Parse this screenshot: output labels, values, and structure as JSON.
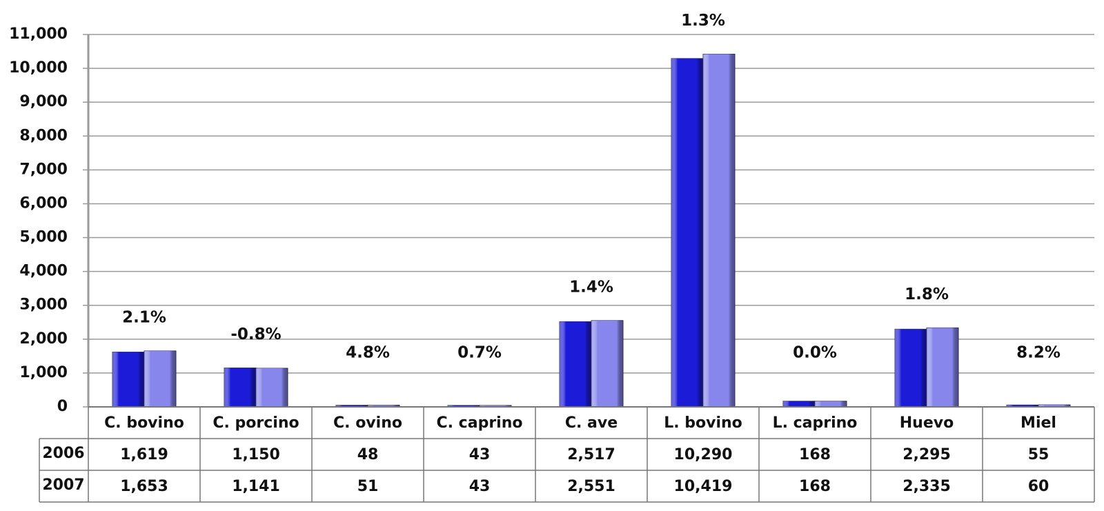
{
  "chart_data": {
    "type": "bar",
    "categories": [
      "C. bovino",
      "C. porcino",
      "C. ovino",
      "C. caprino",
      "C. ave",
      "L. bovino",
      "L. caprino",
      "Huevo",
      "Miel"
    ],
    "series": [
      {
        "name": "2006",
        "color": "#1c1cd8",
        "values": [
          1619,
          1150,
          48,
          43,
          2517,
          10290,
          168,
          2295,
          55
        ],
        "value_labels": [
          "1,619",
          "1,150",
          "48",
          "43",
          "2,517",
          "10,290",
          "168",
          "2,295",
          "55"
        ]
      },
      {
        "name": "2007",
        "color": "#8686ec",
        "values": [
          1653,
          1141,
          51,
          43,
          2551,
          10419,
          168,
          2335,
          60
        ],
        "value_labels": [
          "1,653",
          "1,141",
          "51",
          "43",
          "2,551",
          "10,419",
          "168",
          "2,335",
          "60"
        ]
      }
    ],
    "annotations": [
      "2.1%",
      "-0.8%",
      "4.8%",
      "0.7%",
      "1.4%",
      "1.3%",
      "0.0%",
      "1.8%",
      "8.2%"
    ],
    "ylim": [
      0,
      11000
    ],
    "yticks": [
      0,
      {
        "value": 1000,
        "label": "1,000"
      },
      {
        "value": 2000,
        "label": "2,000"
      },
      {
        "value": 3000,
        "label": "3,000"
      },
      {
        "value": 4000,
        "label": "4,000"
      },
      {
        "value": 5000,
        "label": "5,000"
      },
      {
        "value": 6000,
        "label": "6,000"
      },
      {
        "value": 7000,
        "label": "7,000"
      },
      {
        "value": 8000,
        "label": "8,000"
      },
      {
        "value": 9000,
        "label": "9,000"
      },
      {
        "value": 10000,
        "label": "10,000"
      },
      {
        "value": 11000,
        "label": "11,000"
      }
    ],
    "grid": true
  }
}
